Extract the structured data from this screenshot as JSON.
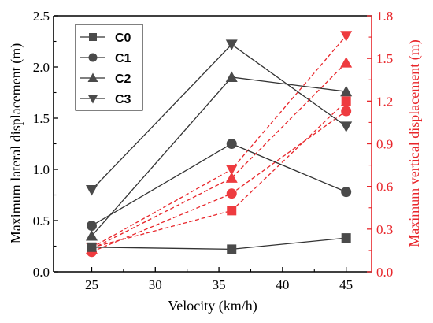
{
  "chart_data": {
    "type": "line",
    "x": [
      25,
      36,
      45
    ],
    "xlabel": "Velocity  (km/h)",
    "xlim": [
      22,
      47
    ],
    "xticks": [
      25,
      30,
      35,
      40,
      45
    ],
    "xtick_labels": [
      "25",
      "30",
      "35",
      "40",
      "45"
    ],
    "left_axis": {
      "label": "Maximum lateral displacement (m)",
      "ylim": [
        0,
        2.5
      ],
      "ticks": [
        0,
        0.5,
        1.0,
        1.5,
        2.0,
        2.5
      ],
      "tick_labels": [
        "0.0",
        "0.5",
        "1.0",
        "1.5",
        "2.0",
        "2.5"
      ],
      "color": "#000000"
    },
    "right_axis": {
      "label": "Maximum vertical displacement (m)",
      "ylim": [
        0,
        1.8
      ],
      "ticks": [
        0,
        0.3,
        0.6,
        0.9,
        1.2,
        1.5,
        1.8
      ],
      "tick_labels": [
        "0.0",
        "0.3",
        "0.6",
        "0.9",
        "1.2",
        "1.5",
        "1.8"
      ],
      "color": "#e8262b"
    },
    "series": [
      {
        "name": "C0",
        "marker": "square",
        "lateral": [
          0.24,
          0.22,
          0.33
        ],
        "vertical": [
          0.17,
          0.43,
          1.2
        ]
      },
      {
        "name": "C1",
        "marker": "circle",
        "lateral": [
          0.45,
          1.25,
          0.78
        ],
        "vertical": [
          0.14,
          0.55,
          1.13
        ]
      },
      {
        "name": "C2",
        "marker": "triangle-up",
        "lateral": [
          0.35,
          1.9,
          1.76
        ],
        "vertical": [
          0.16,
          0.66,
          1.47
        ]
      },
      {
        "name": "C3",
        "marker": "triangle-down",
        "lateral": [
          0.8,
          2.22,
          1.42
        ],
        "vertical": [
          0.17,
          0.72,
          1.66
        ]
      }
    ],
    "legend_position": "top-left",
    "grid": false,
    "lateral_color": "#333333",
    "vertical_color": "#e8262b",
    "marker_fill_lateral": "#4a4a4a",
    "marker_fill_vertical": "#ee3b3f"
  }
}
